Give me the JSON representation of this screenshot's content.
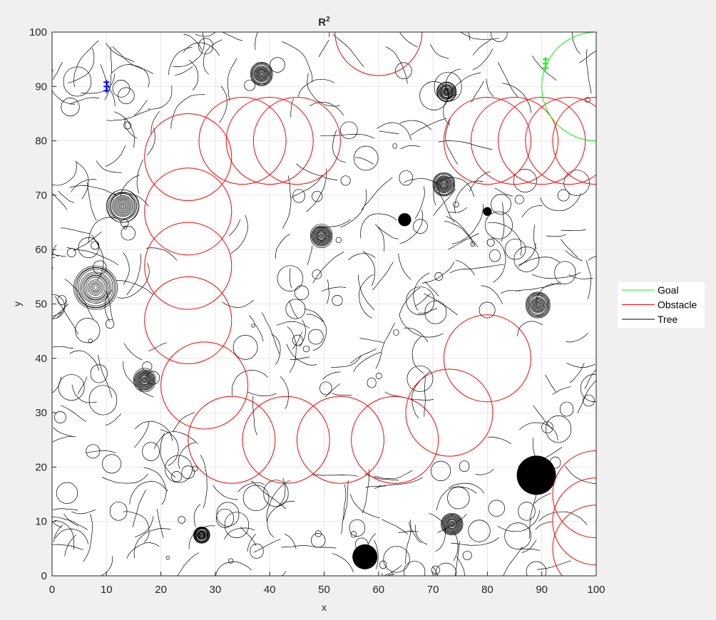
{
  "chart_data": {
    "type": "scatter",
    "title": "R",
    "title_superscript": "2",
    "xlabel": "x",
    "ylabel": "y",
    "xlim": [
      0,
      100
    ],
    "ylim": [
      0,
      100
    ],
    "x_ticks": [
      0,
      10,
      20,
      30,
      40,
      50,
      60,
      70,
      80,
      90,
      100
    ],
    "y_ticks": [
      0,
      10,
      20,
      30,
      40,
      50,
      60,
      70,
      80,
      90,
      100
    ],
    "grid": true,
    "legend": {
      "placement": "outside-right",
      "entries": [
        {
          "label": "Goal",
          "color": "#00ff00"
        },
        {
          "label": "Obstacle",
          "color": "#ff0000"
        },
        {
          "label": "Tree",
          "color": "#000000"
        }
      ]
    },
    "series": [
      {
        "name": "Goal",
        "kind": "circle",
        "color": "#00ff00",
        "circles": [
          {
            "cx": 100,
            "cy": 90,
            "r": 10
          }
        ]
      },
      {
        "name": "Obstacle",
        "kind": "circle",
        "color": "#ff0000",
        "circles": [
          {
            "cx": 60,
            "cy": 100,
            "r": 8
          },
          {
            "cx": 25,
            "cy": 77,
            "r": 8
          },
          {
            "cx": 35,
            "cy": 80,
            "r": 8
          },
          {
            "cx": 40,
            "cy": 80,
            "r": 8
          },
          {
            "cx": 45,
            "cy": 80,
            "r": 8
          },
          {
            "cx": 80,
            "cy": 80,
            "r": 8
          },
          {
            "cx": 85,
            "cy": 80,
            "r": 8
          },
          {
            "cx": 90,
            "cy": 80,
            "r": 8
          },
          {
            "cx": 95,
            "cy": 80,
            "r": 8
          },
          {
            "cx": 100,
            "cy": 80,
            "r": 8
          },
          {
            "cx": 25,
            "cy": 67,
            "r": 8
          },
          {
            "cx": 25,
            "cy": 57,
            "r": 8
          },
          {
            "cx": 25,
            "cy": 47,
            "r": 8
          },
          {
            "cx": 28,
            "cy": 35,
            "r": 8
          },
          {
            "cx": 33,
            "cy": 25,
            "r": 8
          },
          {
            "cx": 43,
            "cy": 25,
            "r": 8
          },
          {
            "cx": 53,
            "cy": 25,
            "r": 8
          },
          {
            "cx": 63,
            "cy": 25,
            "r": 8
          },
          {
            "cx": 73,
            "cy": 30,
            "r": 8
          },
          {
            "cx": 80,
            "cy": 40,
            "r": 8
          },
          {
            "cx": 100,
            "cy": 15,
            "r": 8
          },
          {
            "cx": 100,
            "cy": 10,
            "r": 8
          },
          {
            "cx": 100,
            "cy": 5,
            "r": 8
          }
        ]
      },
      {
        "name": "Tree",
        "kind": "tree",
        "color": "#000000",
        "filled_clusters": [
          {
            "x": 89,
            "y": 18.5,
            "r": 3.6
          },
          {
            "x": 57.5,
            "y": 3.5,
            "r": 2.3
          },
          {
            "x": 64.8,
            "y": 65.5,
            "r": 1.2
          },
          {
            "x": 80,
            "y": 67,
            "r": 0.8
          }
        ],
        "spiral_clusters": [
          {
            "x": 8,
            "y": 53,
            "r": 4
          },
          {
            "x": 13,
            "y": 68,
            "r": 3
          },
          {
            "x": 49.5,
            "y": 62.5,
            "r": 2
          },
          {
            "x": 89.3,
            "y": 49.8,
            "r": 2.2
          },
          {
            "x": 73.5,
            "y": 9.5,
            "r": 2
          },
          {
            "x": 38.5,
            "y": 92.3,
            "r": 2
          },
          {
            "x": 72,
            "y": 72,
            "r": 2
          },
          {
            "x": 17,
            "y": 36,
            "r": 2
          },
          {
            "x": 27.5,
            "y": 7.5,
            "r": 1.5
          },
          {
            "x": 72.5,
            "y": 89,
            "r": 1.8
          }
        ]
      },
      {
        "name": "Start marker",
        "kind": "marker",
        "color": "#0000ff",
        "points": [
          {
            "x": 10,
            "y": 90
          }
        ]
      },
      {
        "name": "Goal marker",
        "kind": "marker",
        "color": "#00ff00",
        "points": [
          {
            "x": 90.7,
            "y": 94.2
          }
        ]
      }
    ]
  }
}
